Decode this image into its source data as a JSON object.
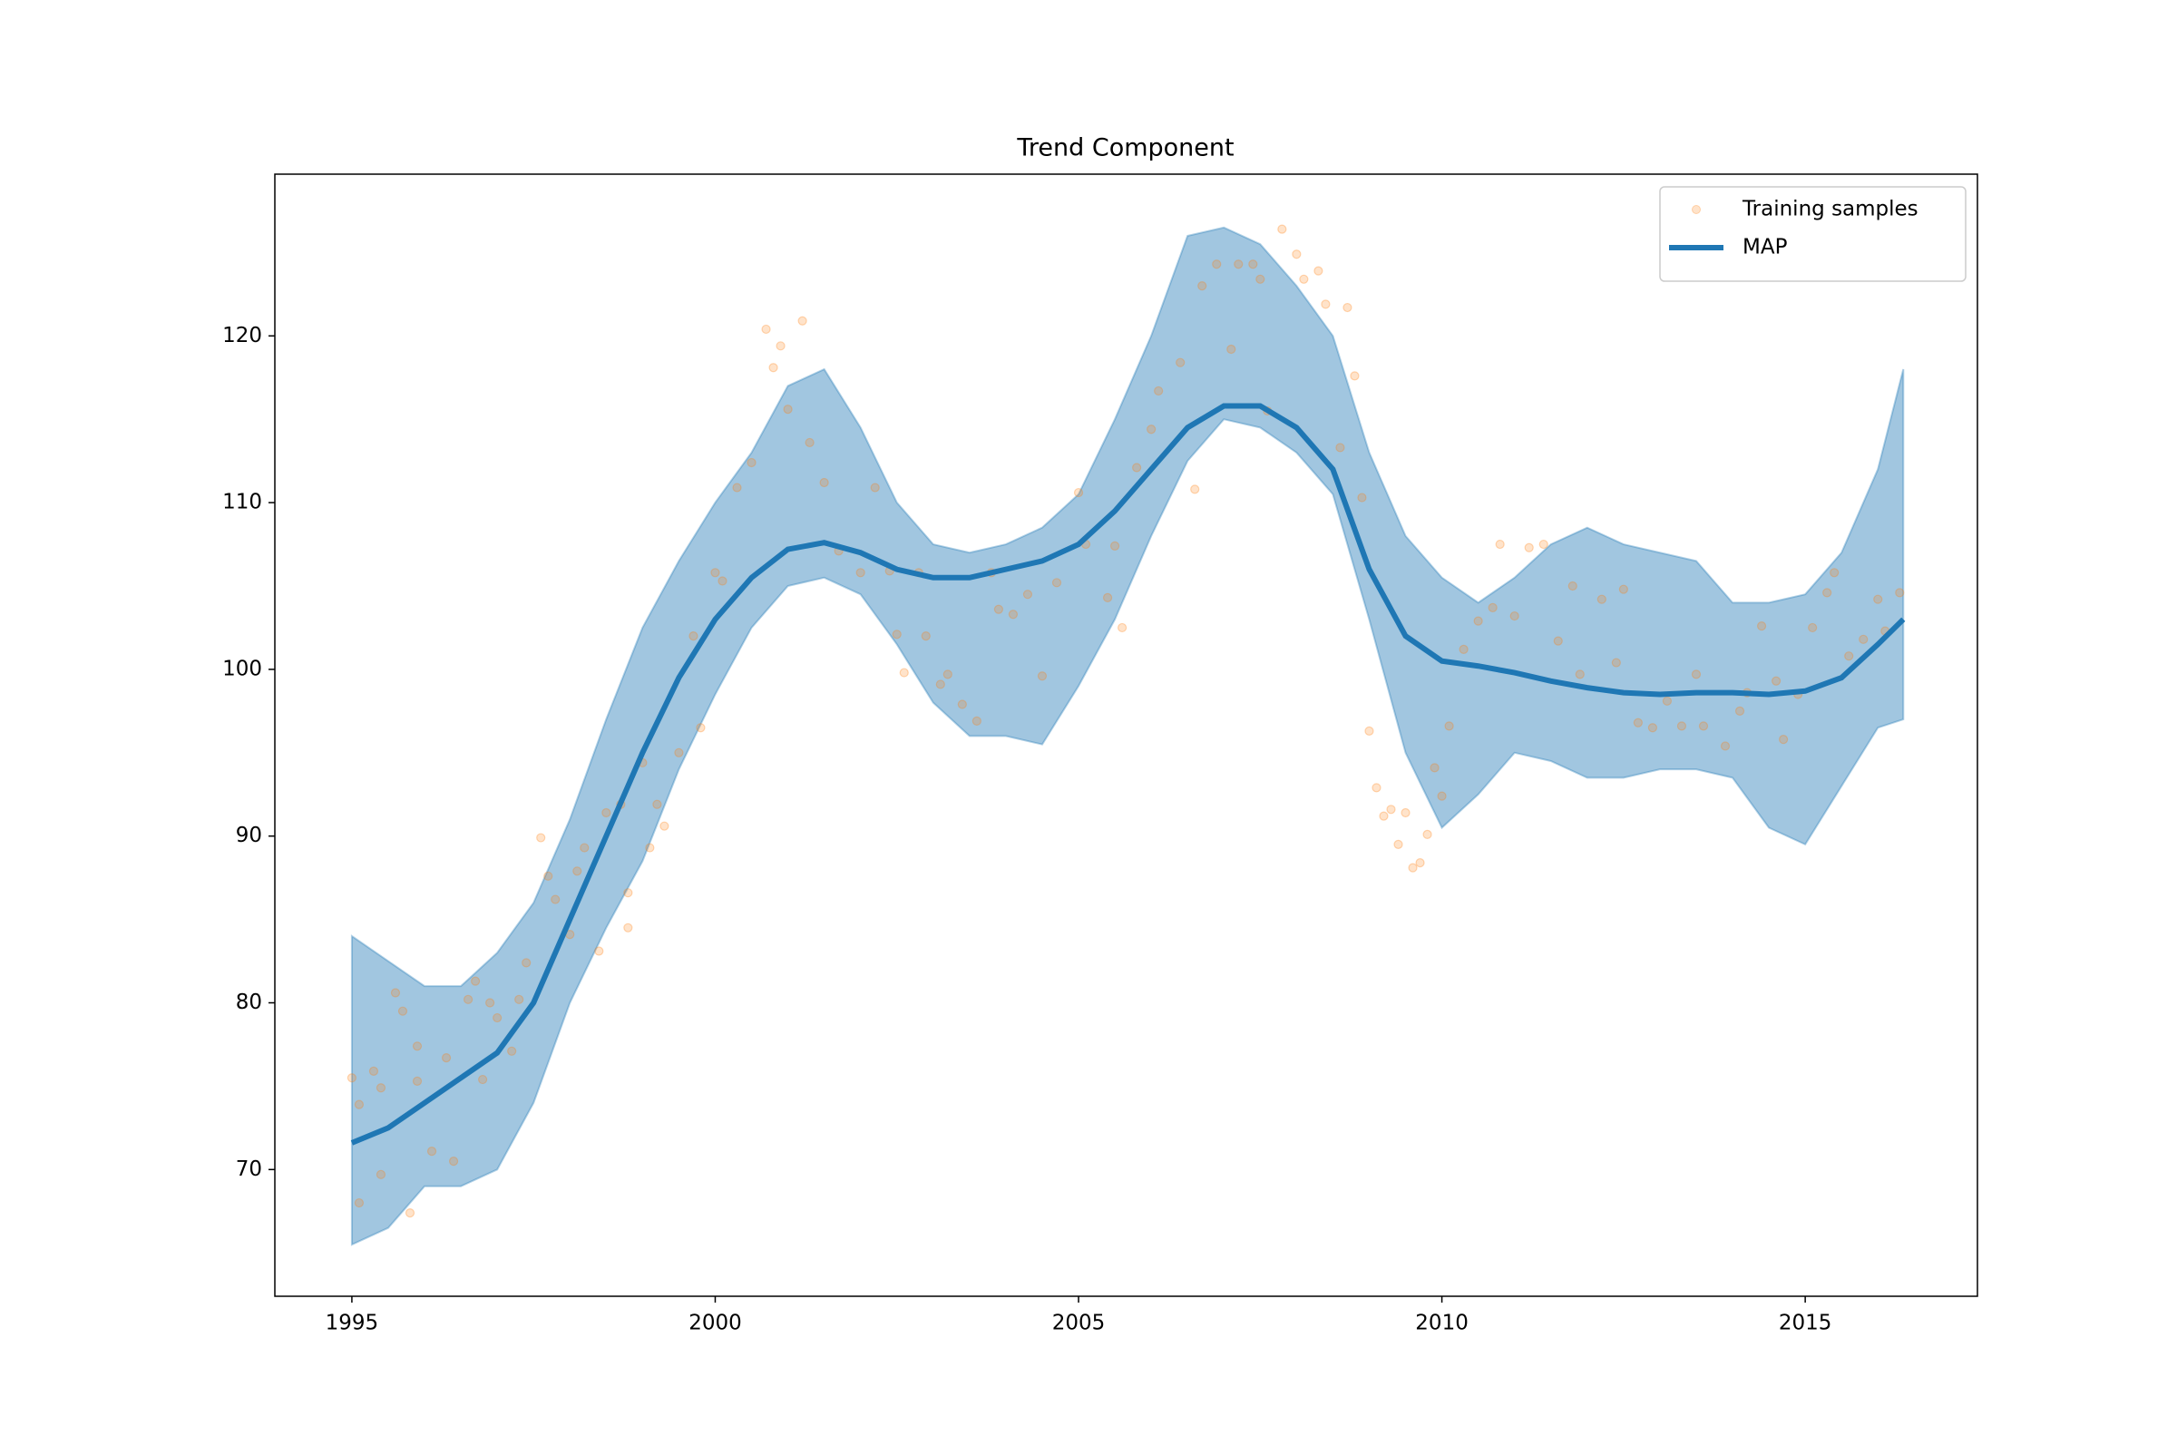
{
  "chart_data": {
    "type": "line",
    "title": "Trend Component",
    "xlim": [
      1993.94,
      2017.37
    ],
    "ylim": [
      62.4,
      129.7
    ],
    "xticks": [
      1995,
      2000,
      2005,
      2010,
      2015
    ],
    "yticks": [
      70,
      80,
      90,
      100,
      110,
      120
    ],
    "legend": "upper right",
    "series": [
      {
        "name": "Training samples",
        "type": "scatter",
        "color": "#ff7f0e",
        "x": [
          1995.0,
          1995.1,
          1995.1,
          1995.3,
          1995.4,
          1995.4,
          1995.6,
          1995.7,
          1995.8,
          1995.9,
          1995.9,
          1996.1,
          1996.3,
          1996.4,
          1996.6,
          1996.7,
          1996.8,
          1996.9,
          1997.0,
          1997.2,
          1997.3,
          1997.4,
          1997.6,
          1997.7,
          1997.8,
          1998.0,
          1998.1,
          1998.2,
          1998.4,
          1998.5,
          1998.7,
          1998.8,
          1998.8,
          1999.0,
          1999.1,
          1999.2,
          1999.3,
          1999.5,
          1999.7,
          1999.8,
          2000.0,
          2000.1,
          2000.3,
          2000.5,
          2000.7,
          2000.8,
          2000.9,
          2001.0,
          2001.2,
          2001.3,
          2001.5,
          2001.7,
          2002.0,
          2002.2,
          2002.4,
          2002.5,
          2002.6,
          2002.8,
          2002.9,
          2003.1,
          2003.2,
          2003.4,
          2003.6,
          2003.8,
          2003.9,
          2004.1,
          2004.3,
          2004.5,
          2004.7,
          2005.0,
          2005.1,
          2005.4,
          2005.5,
          2005.6,
          2005.8,
          2006.0,
          2006.1,
          2006.4,
          2006.6,
          2006.7,
          2006.9,
          2007.1,
          2007.2,
          2007.4,
          2007.5,
          2007.6,
          2007.8,
          2008.0,
          2008.1,
          2008.3,
          2008.4,
          2008.6,
          2008.7,
          2008.8,
          2008.9,
          2009.0,
          2009.1,
          2009.2,
          2009.3,
          2009.4,
          2009.5,
          2009.6,
          2009.7,
          2009.8,
          2009.9,
          2010.0,
          2010.1,
          2010.3,
          2010.5,
          2010.7,
          2010.8,
          2011.0,
          2011.2,
          2011.4,
          2011.6,
          2011.8,
          2011.9,
          2012.2,
          2012.4,
          2012.5,
          2012.7,
          2012.9,
          2013.1,
          2013.3,
          2013.5,
          2013.6,
          2013.9,
          2014.1,
          2014.2,
          2014.4,
          2014.6,
          2014.7,
          2014.9,
          2015.1,
          2015.3,
          2015.4,
          2015.6,
          2015.8,
          2016.0,
          2016.1,
          2016.3
        ],
        "values": [
          75.5,
          73.9,
          68.0,
          75.9,
          74.9,
          69.7,
          80.6,
          79.5,
          67.4,
          75.3,
          77.4,
          71.1,
          76.7,
          70.5,
          80.2,
          81.3,
          75.4,
          80.0,
          79.1,
          77.1,
          80.2,
          82.4,
          89.9,
          87.6,
          86.2,
          84.1,
          87.9,
          89.3,
          83.1,
          91.4,
          91.9,
          86.6,
          84.5,
          94.4,
          89.3,
          91.9,
          90.6,
          95.0,
          102.0,
          96.5,
          105.8,
          105.3,
          110.9,
          112.4,
          120.4,
          118.1,
          119.4,
          115.6,
          120.9,
          113.6,
          111.2,
          107.1,
          105.8,
          110.9,
          105.9,
          102.1,
          99.8,
          105.8,
          102.0,
          99.1,
          99.7,
          97.9,
          96.9,
          105.8,
          103.6,
          103.3,
          104.5,
          99.6,
          105.2,
          110.6,
          107.5,
          104.3,
          107.4,
          102.5,
          112.1,
          114.4,
          116.7,
          118.4,
          110.8,
          123.0,
          124.3,
          119.2,
          124.3,
          124.3,
          123.4,
          115.5,
          126.4,
          124.9,
          123.4,
          123.9,
          121.9,
          113.3,
          121.7,
          117.6,
          110.3,
          96.3,
          92.9,
          91.2,
          91.6,
          89.5,
          91.4,
          88.1,
          88.4,
          90.1,
          94.1,
          92.4,
          96.6,
          101.2,
          102.9,
          103.7,
          107.5,
          103.2,
          107.3,
          107.5,
          101.7,
          105.0,
          99.7,
          104.2,
          100.4,
          104.8,
          96.8,
          96.5,
          98.1,
          96.6,
          99.7,
          96.6,
          95.4,
          97.5,
          98.6,
          102.6,
          99.3,
          95.8,
          98.5,
          102.5,
          104.6,
          105.8,
          100.8,
          101.8,
          104.2,
          102.3,
          104.6
        ]
      },
      {
        "name": "MAP",
        "type": "line",
        "color": "#1f77b4",
        "x": [
          1995,
          1995.5,
          1996,
          1996.5,
          1997,
          1997.5,
          1998,
          1998.5,
          1999,
          1999.5,
          2000,
          2000.5,
          2001,
          2001.5,
          2002,
          2002.5,
          2003,
          2003.5,
          2004,
          2004.5,
          2005,
          2005.5,
          2006,
          2006.5,
          2007,
          2007.5,
          2008,
          2008.5,
          2009,
          2009.5,
          2010,
          2010.5,
          2011,
          2011.5,
          2012,
          2012.5,
          2013,
          2013.5,
          2014,
          2014.5,
          2015,
          2015.5,
          2016,
          2016.35
        ],
        "values": [
          71.6,
          72.5,
          74,
          75.5,
          77,
          80,
          85,
          90,
          95,
          99.5,
          103,
          105.5,
          107.2,
          107.6,
          107,
          106,
          105.5,
          105.5,
          106,
          106.5,
          107.5,
          109.5,
          112,
          114.5,
          115.8,
          115.8,
          114.5,
          112,
          106,
          102,
          100.5,
          100.2,
          99.8,
          99.3,
          98.9,
          98.6,
          98.5,
          98.6,
          98.6,
          98.5,
          98.7,
          99.5,
          101.5,
          103
        ]
      },
      {
        "type": "band",
        "color": "#1f77b4",
        "x": [
          1995,
          1995.5,
          1996,
          1996.5,
          1997,
          1997.5,
          1998,
          1998.5,
          1999,
          1999.5,
          2000,
          2000.5,
          2001,
          2001.5,
          2002,
          2002.5,
          2003,
          2003.5,
          2004,
          2004.5,
          2005,
          2005.5,
          2006,
          2006.5,
          2007,
          2007.5,
          2008,
          2008.5,
          2009,
          2009.5,
          2010,
          2010.5,
          2011,
          2011.5,
          2012,
          2012.5,
          2013,
          2013.5,
          2014,
          2014.5,
          2015,
          2015.5,
          2016,
          2016.35
        ],
        "upper": [
          84,
          82.5,
          81,
          81,
          83,
          86,
          91,
          97,
          102.5,
          106.5,
          110,
          113,
          117,
          118,
          114.5,
          110,
          107.5,
          107,
          107.5,
          108.5,
          110.5,
          115,
          120,
          126,
          126.5,
          125.5,
          123,
          120,
          113,
          108,
          105.5,
          104,
          105.5,
          107.5,
          108.5,
          107.5,
          107,
          106.5,
          104,
          104,
          104.5,
          107,
          112,
          118
        ],
        "lower": [
          65.5,
          66.5,
          69,
          69,
          70,
          74,
          80,
          84.5,
          88.5,
          94,
          98.5,
          102.5,
          105,
          105.5,
          104.5,
          101.5,
          98,
          96,
          96,
          95.5,
          99,
          103,
          108,
          112.5,
          115,
          114.5,
          113,
          110.5,
          103,
          95,
          90.5,
          92.5,
          95,
          94.5,
          93.5,
          93.5,
          94,
          94,
          93.5,
          90.5,
          89.5,
          93,
          96.5,
          97
        ]
      }
    ]
  }
}
